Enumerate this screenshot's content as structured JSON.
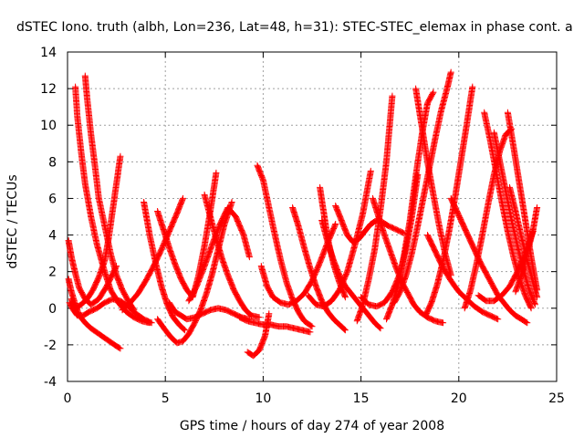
{
  "chart_data": {
    "type": "scatter",
    "title": "dSTEC Iono. truth (albh, Lon=236, Lat=48, h=31): STEC-STEC_elemax in phase cont. a",
    "xlabel": "GPS time / hours of day 274 of year 2008",
    "ylabel": "dSTEC  / TECUs",
    "xlim": [
      0,
      25
    ],
    "ylim": [
      -4,
      14
    ],
    "xticks": [
      0,
      5,
      10,
      15,
      20,
      25
    ],
    "yticks": [
      -4,
      -2,
      0,
      2,
      4,
      6,
      8,
      10,
      12,
      14
    ],
    "grid": true,
    "marker": "plus",
    "color": "#ff0000",
    "series": [
      {
        "x": [
          0.05,
          0.2,
          0.4,
          0.6,
          0.9,
          1.2,
          1.6,
          2.0,
          2.4,
          2.7
        ],
        "y": [
          1.6,
          0.9,
          0.2,
          -0.4,
          -0.8,
          -1.1,
          -1.4,
          -1.7,
          -2.0,
          -2.2
        ]
      },
      {
        "x": [
          0.1,
          0.3,
          0.5,
          0.8,
          1.1,
          1.5,
          1.9,
          2.3,
          2.7,
          3.1,
          3.5,
          3.9,
          4.3
        ],
        "y": [
          0.3,
          -0.1,
          -0.4,
          -0.4,
          -0.2,
          0.0,
          0.3,
          0.5,
          0.4,
          0.1,
          -0.3,
          -0.6,
          -0.8
        ]
      },
      {
        "x": [
          0.05,
          0.2,
          0.4,
          0.6,
          0.9,
          1.2,
          1.6,
          2.0,
          2.5
        ],
        "y": [
          3.7,
          2.8,
          1.9,
          1.1,
          0.5,
          0.2,
          0.5,
          1.2,
          2.3
        ]
      },
      {
        "x": [
          0.4,
          0.5,
          0.7,
          0.9,
          1.2,
          1.5,
          1.9,
          2.2,
          2.6,
          3.0,
          3.4,
          3.8,
          4.2
        ],
        "y": [
          12.1,
          10.5,
          8.5,
          6.8,
          5.0,
          3.5,
          2.0,
          1.0,
          0.3,
          -0.2,
          -0.5,
          -0.7,
          -0.8
        ]
      },
      {
        "x": [
          0.9,
          1.0,
          1.2,
          1.4,
          1.6,
          1.9,
          2.2,
          2.5,
          2.8,
          3.1,
          3.4
        ],
        "y": [
          12.7,
          11.5,
          9.5,
          7.8,
          6.0,
          4.5,
          3.0,
          1.8,
          1.0,
          0.4,
          -0.1
        ]
      },
      {
        "x": [
          0.2,
          0.4,
          0.7,
          1.0,
          1.3,
          1.6,
          1.9,
          2.1,
          2.3,
          2.5,
          2.7
        ],
        "y": [
          0.5,
          0.0,
          0.2,
          0.5,
          1.0,
          1.7,
          2.6,
          3.8,
          5.3,
          6.8,
          8.3
        ]
      },
      {
        "x": [
          2.8,
          3.2,
          3.6,
          4.0,
          4.4,
          4.8,
          5.2,
          5.6,
          5.9
        ],
        "y": [
          -0.1,
          0.3,
          0.8,
          1.5,
          2.3,
          3.2,
          4.2,
          5.2,
          6.0
        ]
      },
      {
        "x": [
          3.9,
          4.2,
          4.5,
          4.8,
          5.1,
          5.4,
          5.7,
          6.0
        ],
        "y": [
          5.8,
          4.0,
          2.5,
          1.2,
          0.2,
          -0.5,
          -0.9,
          -1.2
        ]
      },
      {
        "x": [
          4.6,
          5.0,
          5.3,
          5.6,
          5.9,
          6.2,
          6.5,
          6.8,
          7.1,
          7.4,
          7.7,
          8.0,
          8.4
        ],
        "y": [
          -0.6,
          -1.2,
          -1.6,
          -1.9,
          -1.8,
          -1.4,
          -0.8,
          -0.1,
          0.8,
          1.9,
          3.2,
          4.5,
          5.8
        ]
      },
      {
        "x": [
          5.2,
          5.5,
          5.8,
          6.1,
          6.5,
          6.9,
          7.3,
          7.7,
          8.1,
          8.5,
          8.9,
          9.3
        ],
        "y": [
          0.3,
          -0.2,
          -0.4,
          -0.6,
          -0.5,
          -0.3,
          -0.1,
          0.0,
          -0.1,
          -0.3,
          -0.5,
          -0.6
        ]
      },
      {
        "x": [
          6.2,
          6.6,
          7.0,
          7.4,
          7.8,
          8.2,
          8.6,
          9.0,
          9.3
        ],
        "y": [
          0.4,
          1.2,
          2.3,
          3.5,
          4.6,
          5.5,
          5.0,
          4.0,
          2.8
        ]
      },
      {
        "x": [
          4.6,
          4.9,
          5.2,
          5.5,
          5.8,
          6.1,
          6.4,
          6.7,
          7.0,
          7.3,
          7.6
        ],
        "y": [
          5.3,
          4.3,
          3.3,
          2.4,
          1.6,
          1.0,
          0.6,
          1.8,
          3.4,
          5.3,
          7.4
        ]
      },
      {
        "x": [
          7.0,
          7.3,
          7.6,
          7.9,
          8.2,
          8.5,
          8.8,
          9.1,
          9.4,
          9.8
        ],
        "y": [
          6.2,
          5.0,
          3.8,
          2.7,
          1.8,
          1.0,
          0.4,
          -0.1,
          -0.4,
          -0.5
        ]
      },
      {
        "x": [
          8.8,
          9.2,
          9.6,
          10.0,
          10.4,
          10.8,
          11.2,
          11.6,
          12.0,
          12.4
        ],
        "y": [
          -0.5,
          -0.7,
          -0.8,
          -0.9,
          -0.9,
          -1.0,
          -1.0,
          -1.1,
          -1.2,
          -1.3
        ]
      },
      {
        "x": [
          9.2,
          9.5,
          9.8,
          10.1,
          10.3
        ],
        "y": [
          -2.4,
          -2.6,
          -2.3,
          -1.5,
          -0.3
        ]
      },
      {
        "x": [
          9.7,
          10.0,
          10.3,
          10.6,
          10.9,
          11.2,
          11.5,
          11.8,
          12.1,
          12.5
        ],
        "y": [
          7.8,
          7.0,
          5.5,
          4.0,
          2.6,
          1.4,
          0.5,
          -0.2,
          -0.7,
          -1.0
        ]
      },
      {
        "x": [
          9.9,
          10.2,
          10.5,
          10.9,
          11.3,
          11.7,
          12.1,
          12.5,
          12.9,
          13.3,
          13.7
        ],
        "y": [
          2.3,
          1.2,
          0.6,
          0.3,
          0.2,
          0.4,
          0.8,
          1.5,
          2.5,
          3.6,
          4.6
        ]
      },
      {
        "x": [
          11.5,
          11.8,
          12.1,
          12.4,
          12.7,
          13.0,
          13.3,
          13.6,
          13.9,
          14.2
        ],
        "y": [
          5.5,
          4.5,
          3.3,
          2.2,
          1.2,
          0.4,
          -0.2,
          -0.6,
          -0.9,
          -1.2
        ]
      },
      {
        "x": [
          12.3,
          12.7,
          13.1,
          13.5,
          13.9,
          14.3,
          14.7,
          15.1,
          15.5
        ],
        "y": [
          0.7,
          0.2,
          0.1,
          0.4,
          1.0,
          2.0,
          3.5,
          5.2,
          7.5
        ]
      },
      {
        "x": [
          12.9,
          13.1,
          13.3,
          13.6,
          13.9,
          14.2
        ],
        "y": [
          6.6,
          5.2,
          3.8,
          2.4,
          1.4,
          0.6
        ]
      },
      {
        "x": [
          13.0,
          13.3,
          13.6,
          13.9,
          14.2,
          14.5,
          14.8,
          15.1,
          15.4,
          15.7,
          16.0
        ],
        "y": [
          4.8,
          3.6,
          2.6,
          1.8,
          1.2,
          0.8,
          0.4,
          0.0,
          -0.4,
          -0.8,
          -1.1
        ]
      },
      {
        "x": [
          13.7,
          14.0,
          14.3,
          14.6,
          14.9,
          15.2,
          15.5,
          15.8,
          16.1,
          16.4,
          16.8,
          17.2
        ],
        "y": [
          5.6,
          4.8,
          4.0,
          3.6,
          3.8,
          4.2,
          4.6,
          4.8,
          4.7,
          4.5,
          4.3,
          4.1
        ]
      },
      {
        "x": [
          14.8,
          15.1,
          15.4,
          15.7,
          16.0,
          16.3,
          16.6
        ],
        "y": [
          -0.7,
          0.2,
          1.6,
          3.2,
          5.4,
          8.0,
          11.6
        ]
      },
      {
        "x": [
          15.0,
          15.4,
          15.8,
          16.2,
          16.6,
          17.0,
          17.3,
          17.6,
          17.9
        ],
        "y": [
          0.6,
          0.2,
          0.1,
          0.3,
          0.9,
          1.9,
          3.2,
          5.0,
          7.3
        ]
      },
      {
        "x": [
          16.3,
          16.6,
          16.9,
          17.2,
          17.5,
          17.8,
          18.1,
          18.4,
          18.7
        ],
        "y": [
          -0.6,
          0.2,
          1.3,
          2.9,
          4.8,
          7.2,
          9.4,
          11.2,
          11.8
        ]
      },
      {
        "x": [
          15.6,
          15.9,
          16.2,
          16.5,
          16.8,
          17.1,
          17.4,
          17.7,
          18.0,
          18.4,
          18.8,
          19.2
        ],
        "y": [
          6.0,
          5.0,
          4.0,
          3.1,
          2.2,
          1.4,
          0.8,
          0.2,
          -0.2,
          -0.5,
          -0.7,
          -0.8
        ]
      },
      {
        "x": [
          16.7,
          17.0,
          17.3,
          17.6,
          17.9,
          18.2,
          18.5,
          18.8,
          19.1,
          19.4,
          19.6
        ],
        "y": [
          0.3,
          0.9,
          1.8,
          3.0,
          4.5,
          6.1,
          7.7,
          9.3,
          10.8,
          12.0,
          12.9
        ]
      },
      {
        "x": [
          17.8,
          18.1,
          18.4,
          18.7,
          19.0,
          19.3,
          19.6
        ],
        "y": [
          12.0,
          10.0,
          8.0,
          6.2,
          4.5,
          3.0,
          1.8
        ]
      },
      {
        "x": [
          18.3,
          18.6,
          18.9,
          19.2,
          19.5,
          19.8,
          20.1,
          20.4,
          20.7
        ],
        "y": [
          -0.4,
          0.3,
          1.3,
          2.6,
          4.2,
          6.0,
          8.0,
          10.0,
          12.1
        ]
      },
      {
        "x": [
          18.4,
          18.8,
          19.2,
          19.6,
          20.0,
          20.4,
          20.8,
          21.2,
          21.6,
          22.0
        ],
        "y": [
          4.0,
          3.1,
          2.2,
          1.5,
          0.9,
          0.5,
          0.1,
          -0.2,
          -0.4,
          -0.6
        ]
      },
      {
        "x": [
          19.6,
          19.9,
          20.2,
          20.5,
          20.8,
          21.1,
          21.4,
          21.7,
          22.0,
          22.3,
          22.6,
          22.9,
          23.2,
          23.5
        ],
        "y": [
          6.0,
          5.3,
          4.6,
          3.9,
          3.2,
          2.5,
          1.9,
          1.3,
          0.7,
          0.3,
          -0.1,
          -0.4,
          -0.6,
          -0.8
        ]
      },
      {
        "x": [
          20.3,
          20.6,
          20.9,
          21.2,
          21.5,
          21.8,
          22.1,
          22.4,
          22.7
        ],
        "y": [
          0.0,
          1.0,
          2.4,
          4.0,
          5.7,
          7.3,
          8.6,
          9.5,
          9.8
        ]
      },
      {
        "x": [
          21.3,
          21.6,
          21.9,
          22.2,
          22.5,
          22.8,
          23.1,
          23.4,
          23.7
        ],
        "y": [
          10.7,
          9.2,
          7.5,
          5.8,
          4.2,
          2.8,
          1.6,
          0.7,
          0.0
        ]
      },
      {
        "x": [
          21.8,
          22.1,
          22.4,
          22.7,
          23.0,
          23.3,
          23.6,
          23.9
        ],
        "y": [
          9.6,
          8.0,
          6.4,
          4.8,
          3.4,
          2.1,
          1.0,
          0.2
        ]
      },
      {
        "x": [
          22.5,
          22.8,
          23.1,
          23.4,
          23.7,
          24.0
        ],
        "y": [
          10.7,
          8.8,
          6.8,
          4.8,
          2.8,
          1.0
        ]
      },
      {
        "x": [
          21.0,
          21.4,
          21.8,
          22.2,
          22.6,
          23.0,
          23.4,
          23.8
        ],
        "y": [
          0.7,
          0.4,
          0.4,
          0.7,
          1.2,
          2.0,
          3.0,
          4.2
        ]
      },
      {
        "x": [
          22.9,
          23.2,
          23.5,
          23.8,
          24.0
        ],
        "y": [
          0.9,
          1.8,
          3.0,
          4.3,
          5.5
        ]
      },
      {
        "x": [
          22.6,
          22.9,
          23.2,
          23.5,
          23.8,
          24.0
        ],
        "y": [
          6.6,
          5.3,
          3.9,
          2.6,
          1.4,
          0.6
        ]
      }
    ]
  }
}
